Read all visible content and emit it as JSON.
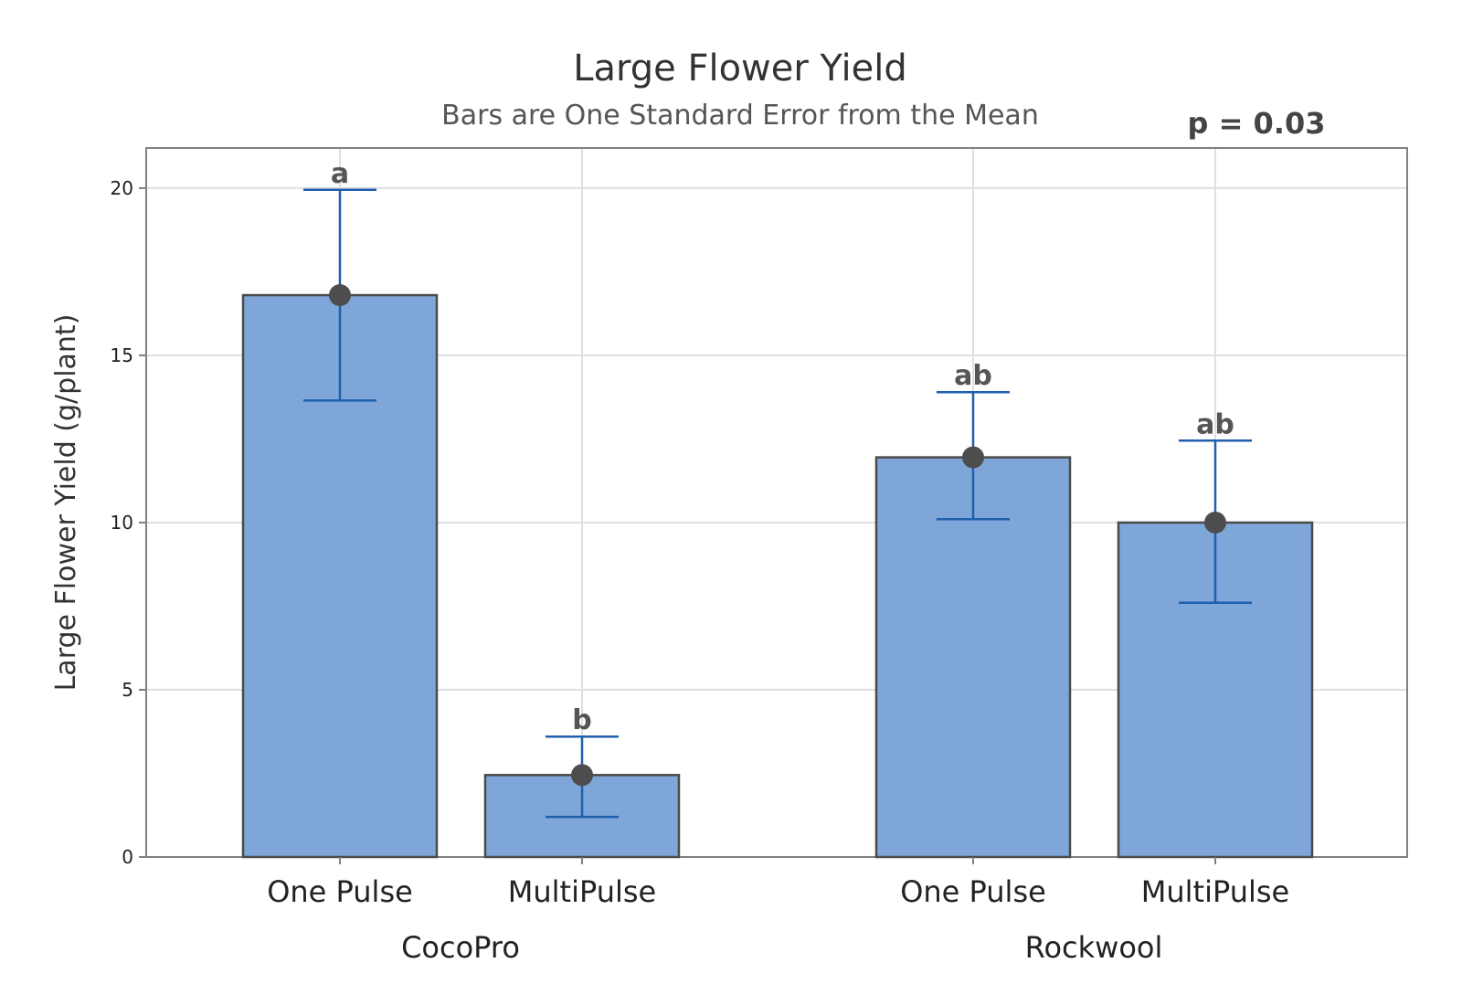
{
  "chart_data": {
    "type": "bar",
    "title": "Large Flower Yield",
    "subtitle": "Bars are One Standard Error from the Mean",
    "annotation": "p = 0.03",
    "ylabel": "Large Flower Yield (g/plant)",
    "xlabel": "",
    "ylim": [
      0,
      21.2
    ],
    "yticks": [
      0,
      5,
      10,
      15,
      20
    ],
    "grid": true,
    "bar_color": "#7ea6d8",
    "bar_edge_color": "#4a4a4a",
    "errorbar_color": "#1f5fae",
    "point_color": "#4d4d4d",
    "groups": [
      {
        "name": "CocoPro",
        "categories": [
          "One Pulse",
          "MultiPulse"
        ]
      },
      {
        "name": "Rockwool",
        "categories": [
          "One Pulse",
          "MultiPulse"
        ]
      }
    ],
    "categories": [
      "One Pulse",
      "MultiPulse",
      "One Pulse",
      "MultiPulse"
    ],
    "values": [
      16.8,
      2.45,
      11.95,
      10.0
    ],
    "error_low": [
      13.65,
      1.2,
      10.1,
      7.6
    ],
    "error_high": [
      19.95,
      3.6,
      13.9,
      12.45
    ],
    "significance_letters": [
      "a",
      "b",
      "ab",
      "ab"
    ]
  }
}
